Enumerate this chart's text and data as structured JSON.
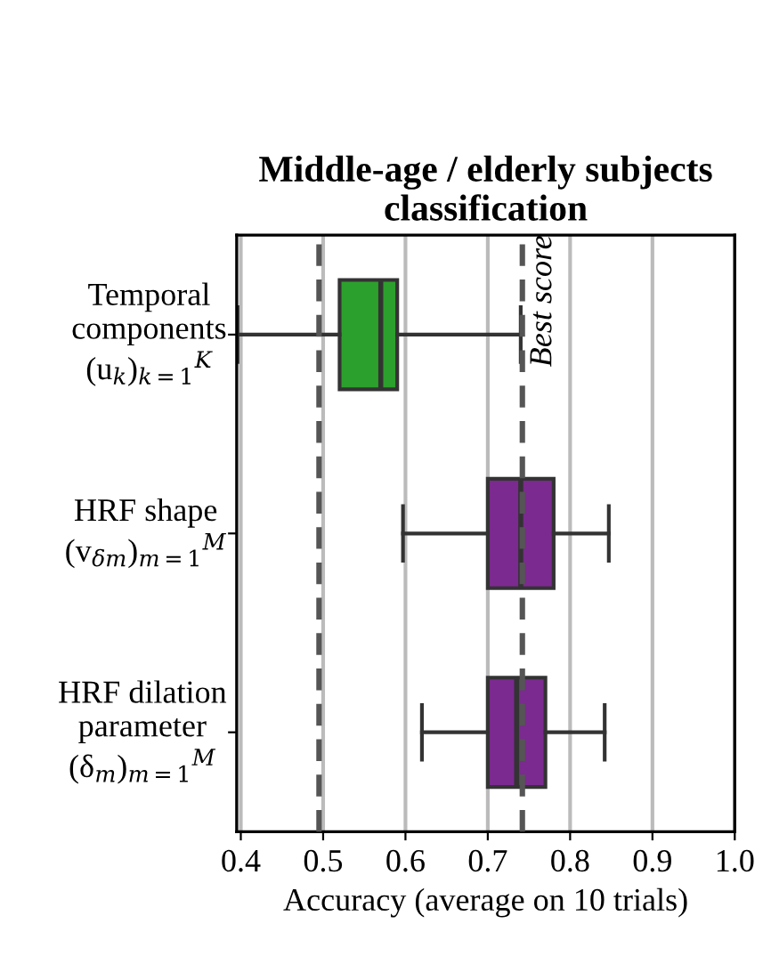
{
  "chart_data": {
    "type": "box",
    "orientation": "horizontal",
    "title": "Middle-age / elderly subjects\nclassification",
    "xlabel": "Accuracy (average on 10 trials)",
    "categories": [
      "Temporal\ncomponents\n(u$_{k}$)$_{k=1}$$^{K}$",
      "HRF shape\n(v$_{δm}$)$_{m=1}$$^{M}$",
      "HRF dilation\nparameter\n(δ$_{m}$)$_{m=1}$$^{M}$"
    ],
    "colors": [
      "#2ca02c",
      "#7b2a8f",
      "#7b2a8f"
    ],
    "boxes": [
      {
        "low": 0.396,
        "q1": 0.52,
        "median": 0.57,
        "q3": 0.59,
        "high": 0.74
      },
      {
        "low": 0.597,
        "q1": 0.7,
        "median": 0.74,
        "q3": 0.78,
        "high": 0.847
      },
      {
        "low": 0.62,
        "q1": 0.7,
        "median": 0.735,
        "q3": 0.77,
        "high": 0.842
      }
    ],
    "xlim": [
      0.395,
      1.0
    ],
    "xticks": [
      0.4,
      0.5,
      0.6,
      0.7,
      0.8,
      0.9,
      {
        "value": 1.0,
        "label": "1.0"
      }
    ],
    "grid": "x",
    "ref_lines": [
      {
        "axis": "x",
        "value": 0.495,
        "label": null,
        "color": "#555555",
        "line_style": "dashed"
      },
      {
        "axis": "x",
        "value": 0.742,
        "label": "Best score",
        "color": "#555555",
        "line_style": "dashed"
      }
    ]
  }
}
